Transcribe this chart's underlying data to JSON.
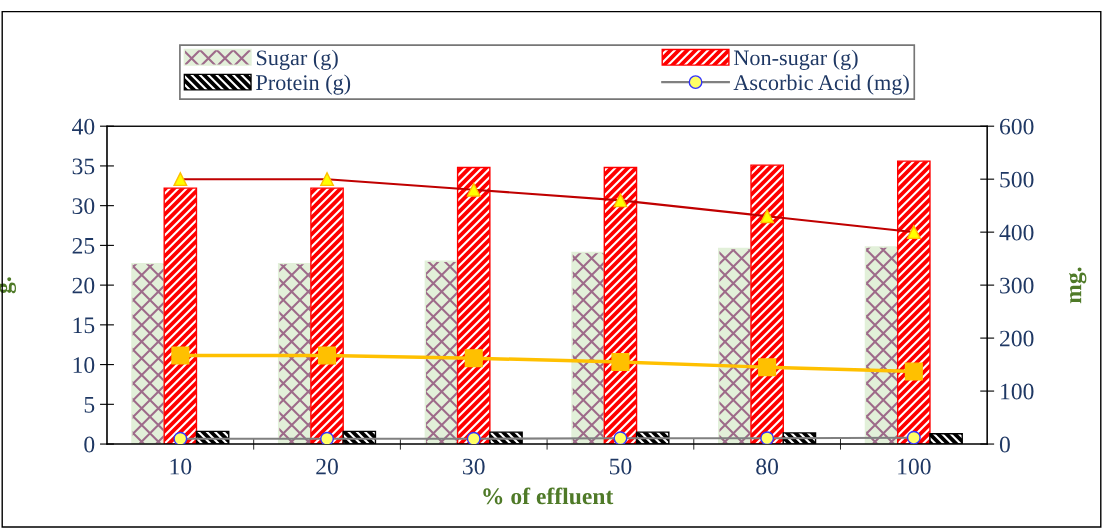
{
  "chart_data": {
    "type": "bar",
    "xlabel": "% of effluent",
    "ylabel": "g.",
    "y2label": "mg.",
    "categories": [
      "10",
      "20",
      "30",
      "50",
      "80",
      "100"
    ],
    "series": [
      {
        "name": "Sugar (g)",
        "color": "#e2f0d9",
        "values": [
          22.7,
          22.7,
          23.0,
          24.1,
          24.6,
          24.8
        ]
      },
      {
        "name": "Non-sugar (g)",
        "color": "#ff0000",
        "values": [
          32.2,
          32.2,
          34.8,
          34.8,
          35.1,
          35.6
        ]
      },
      {
        "name": "Protein (g)",
        "color": "#000000",
        "values": [
          1.6,
          1.6,
          1.5,
          1.5,
          1.4,
          1.3
        ]
      },
      {
        "name": "Ascorbic Acid (mg)",
        "type": "line",
        "axis": "y2",
        "marker": "circle",
        "color": "#808080",
        "values": [
          10,
          10,
          10,
          11,
          11,
          12
        ]
      },
      {
        "type": "line",
        "axis": "y2",
        "marker": "triangle",
        "color": "#c00000",
        "values": [
          500,
          500,
          480,
          460,
          430,
          400
        ]
      },
      {
        "type": "line",
        "axis": "y2",
        "marker": "square",
        "color": "#ffc000",
        "values": [
          167,
          167,
          162,
          155,
          145,
          137
        ]
      }
    ],
    "ylim": [
      0,
      40
    ],
    "yticks": [
      0,
      5,
      10,
      15,
      20,
      25,
      30,
      35,
      40
    ],
    "y2lim": [
      0,
      600
    ],
    "y2ticks": [
      0,
      100,
      200,
      300,
      400,
      500,
      600
    ],
    "grid": false,
    "legend": "top",
    "line_style": "solid"
  }
}
